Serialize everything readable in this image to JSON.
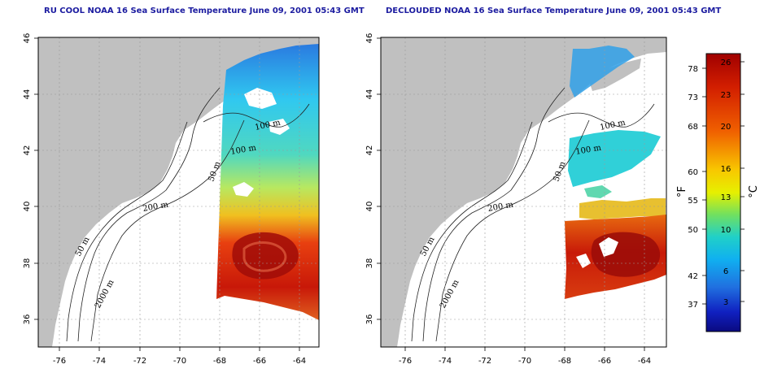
{
  "left_title": "RU COOL NOAA 16 Sea Surface Temperature June 09, 2001 05:43 GMT",
  "right_title": "DECLOUDED NOAA 16 Sea Surface Temperature June 09, 2001 05:43 GMT",
  "lon_ticks": [
    "-76",
    "-74",
    "-72",
    "-70",
    "-68",
    "-66",
    "-64"
  ],
  "lat_ticks": [
    "36",
    "38",
    "40",
    "42",
    "44",
    "46"
  ],
  "contour_labels": [
    "100 m",
    "100 m",
    "50 m",
    "200 m",
    "50 m",
    "2000 m"
  ],
  "colorbar": {
    "f_ticks": [
      "78",
      "73",
      "68",
      "60",
      "55",
      "50",
      "42",
      "37"
    ],
    "c_ticks": [
      "26",
      "23",
      "20",
      "16",
      "13",
      "10",
      "6",
      "3"
    ],
    "f_label": "°F",
    "c_label": "°C"
  },
  "colors": {
    "land": "#c0c0c0",
    "ocean": "#ffffff",
    "title": "#1c1ca0"
  }
}
